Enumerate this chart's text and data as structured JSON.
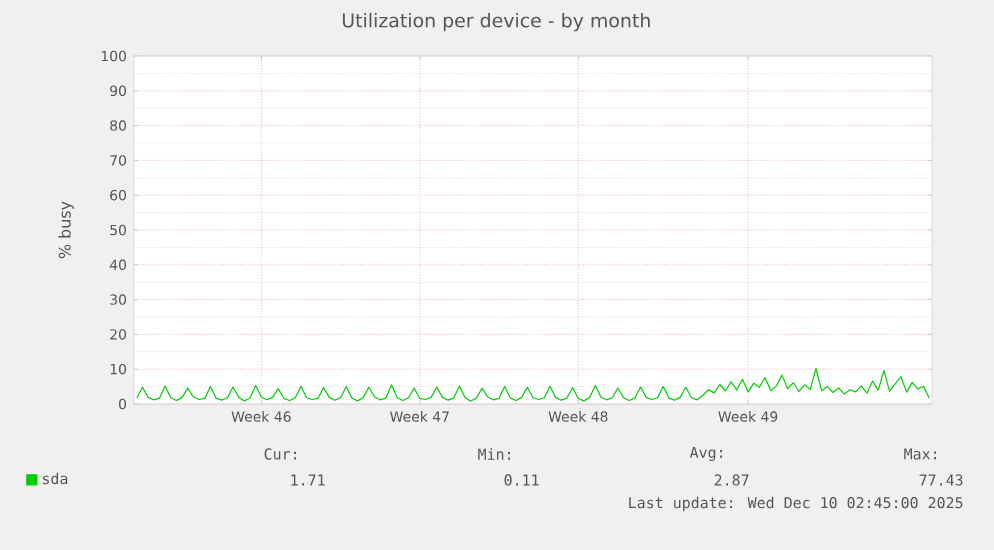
{
  "chart_data": {
    "type": "line",
    "title": "Utilization per device - by month",
    "ylabel": "% busy",
    "categories": [
      null,
      null,
      null,
      null,
      null,
      null,
      null,
      null,
      null,
      null,
      null,
      null,
      null,
      null,
      null,
      null,
      null,
      null,
      null,
      null,
      null,
      null,
      "Week 46",
      null,
      null,
      null,
      null,
      null,
      null,
      null,
      null,
      null,
      null,
      null,
      null,
      null,
      null,
      null,
      null,
      null,
      null,
      null,
      null,
      null,
      null,
      null,
      null,
      null,
      null,
      null,
      "Week 47",
      null,
      null,
      null,
      null,
      null,
      null,
      null,
      null,
      null,
      null,
      null,
      null,
      null,
      null,
      null,
      null,
      null,
      null,
      null,
      null,
      null,
      null,
      null,
      null,
      null,
      null,
      null,
      "Week 48",
      null,
      null,
      null,
      null,
      null,
      null,
      null,
      null,
      null,
      null,
      null,
      null,
      null,
      null,
      null,
      null,
      null,
      null,
      null,
      null,
      null,
      null,
      null,
      null,
      null,
      null,
      null,
      null,
      null,
      "Week 49",
      null,
      null,
      null,
      null,
      null,
      null,
      null,
      null,
      null,
      null,
      null,
      null,
      null,
      null,
      null,
      null,
      null,
      null,
      null,
      null,
      null,
      null,
      null,
      null,
      null,
      null,
      null,
      null,
      null,
      null,
      null,
      null
    ],
    "series": [
      {
        "name": "sda",
        "color": "#00cc00",
        "values": [
          1.8,
          4.8,
          1.9,
          1.2,
          1.7,
          5.2,
          1.8,
          1.0,
          1.9,
          4.6,
          2.0,
          1.3,
          1.6,
          5.0,
          1.7,
          1.1,
          1.8,
          4.9,
          1.9,
          0.9,
          1.7,
          5.3,
          2.0,
          1.2,
          1.9,
          4.4,
          1.6,
          1.0,
          1.8,
          5.1,
          1.8,
          1.3,
          1.6,
          4.7,
          1.9,
          1.1,
          1.8,
          5.0,
          1.7,
          0.9,
          1.9,
          4.8,
          2.0,
          1.2,
          1.7,
          5.5,
          1.8,
          1.0,
          1.8,
          4.6,
          1.6,
          1.3,
          1.9,
          4.9,
          1.9,
          1.1,
          1.7,
          5.2,
          1.8,
          0.8,
          1.8,
          4.5,
          2.0,
          1.2,
          1.6,
          5.0,
          1.7,
          1.0,
          1.9,
          4.8,
          1.8,
          1.3,
          1.8,
          5.1,
          1.9,
          1.1,
          1.7,
          4.7,
          1.6,
          0.9,
          1.9,
          5.3,
          2.0,
          1.2,
          1.8,
          4.6,
          1.8,
          1.0,
          1.7,
          4.9,
          1.9,
          1.3,
          1.8,
          5.0,
          1.7,
          1.1,
          1.9,
          4.8,
          1.8,
          1.2,
          2.5,
          4.1,
          3.2,
          5.6,
          3.8,
          6.4,
          4.0,
          7.1,
          3.5,
          6.0,
          4.8,
          7.6,
          3.9,
          5.2,
          8.3,
          4.4,
          6.1,
          3.6,
          5.5,
          4.2,
          10.2,
          3.8,
          5.0,
          3.3,
          4.6,
          2.9,
          4.1,
          3.5,
          5.2,
          3.1,
          6.6,
          4.0,
          9.6,
          3.7,
          5.8,
          7.9,
          3.4,
          6.2,
          4.3,
          5.1,
          1.7
        ]
      }
    ],
    "ylim": [
      0,
      100
    ],
    "yticks": [
      0,
      10,
      20,
      30,
      40,
      50,
      60,
      70,
      80,
      90,
      100
    ],
    "grid": true,
    "legend": "bottom",
    "annotations": [
      "Cur:",
      "Min:",
      "Avg:",
      "Max:",
      "1.71",
      "0.11",
      "2.87",
      "77.43",
      "Last update: Wed Dec 10 02:45:00 2025"
    ]
  }
}
